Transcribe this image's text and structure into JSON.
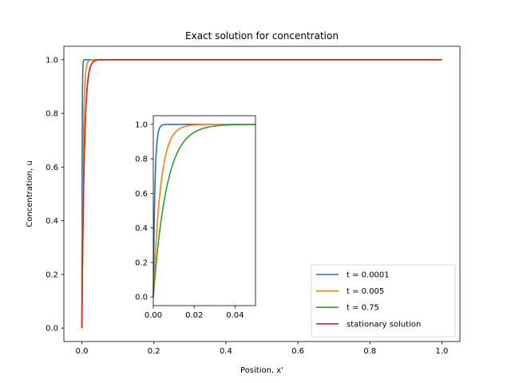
{
  "chart_data": {
    "type": "line",
    "title": "Exact solution for concentration",
    "xlabel": "Position, x'",
    "ylabel": "Concentration, u",
    "xlim": [
      -0.05,
      1.05
    ],
    "ylim": [
      -0.05,
      1.05
    ],
    "xticks": [
      "0.0",
      "0.2",
      "0.4",
      "0.6",
      "0.8",
      "1.0"
    ],
    "yticks": [
      "0.0",
      "0.2",
      "0.4",
      "0.6",
      "0.8",
      "1.0"
    ],
    "grid": false,
    "legend_position": "bottom-right",
    "series": [
      {
        "name": "t = 0.0001",
        "color": "#1f77b4",
        "decay_length": 0.0008
      },
      {
        "name": "t = 0.005",
        "color": "#ff7f0e",
        "decay_length": 0.0035
      },
      {
        "name": "t = 0.75",
        "color": "#2ca02c",
        "decay_length": 0.0065
      },
      {
        "name": "stationary solution",
        "color": "#d62728",
        "decay_length": 0.0065
      }
    ],
    "inset": {
      "xlim": [
        0,
        0.05
      ],
      "ylim": [
        -0.05,
        1.05
      ],
      "xticks": [
        "0.00",
        "0.02",
        "0.04"
      ],
      "yticks": [
        "0.0",
        "0.2",
        "0.4",
        "0.6",
        "0.8",
        "1.0"
      ]
    }
  }
}
